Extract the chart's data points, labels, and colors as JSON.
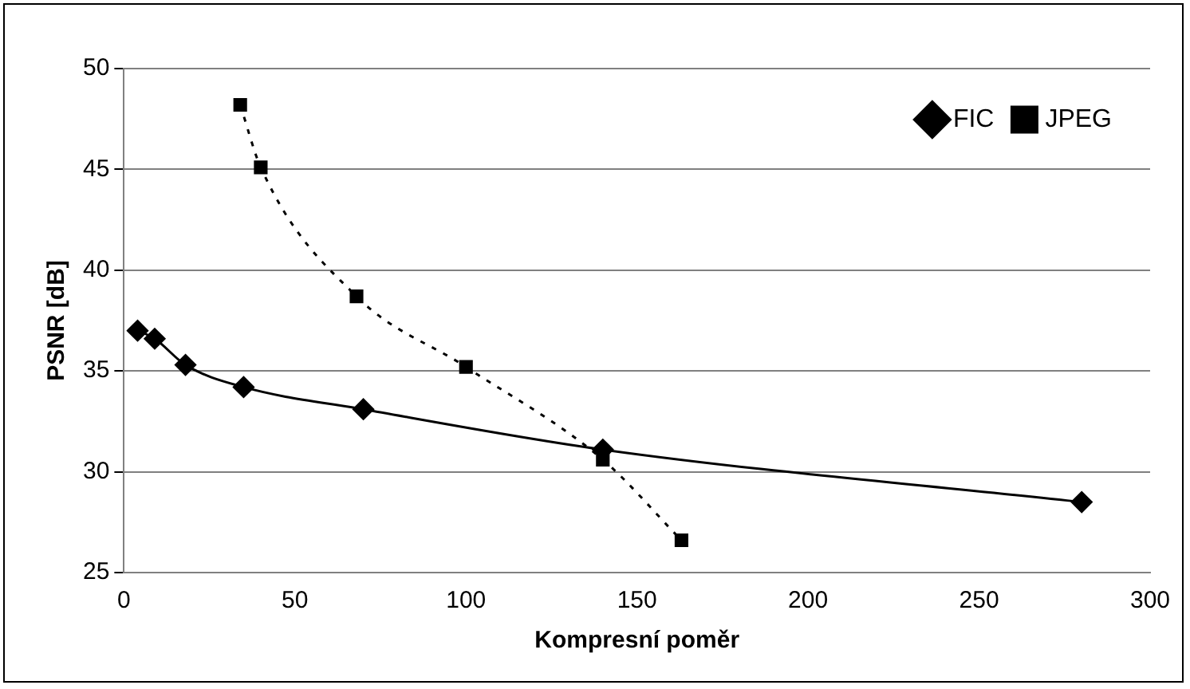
{
  "chart_data": {
    "type": "line",
    "xlabel": "Kompresní poměr",
    "ylabel": "PSNR [dB]",
    "xlim": [
      0,
      300
    ],
    "xticks": [
      0,
      50,
      100,
      150,
      200,
      250,
      300
    ],
    "ylim": [
      25,
      50
    ],
    "yticks": [
      25,
      30,
      35,
      40,
      45,
      50
    ],
    "grid": "y",
    "legend": "top right",
    "series": [
      {
        "name": "FIC",
        "color": "#000000",
        "marker": "diamond",
        "line_style": "solid",
        "x": [
          4,
          9,
          18,
          35,
          70,
          140,
          280
        ],
        "values": [
          37.0,
          36.6,
          35.3,
          34.2,
          33.1,
          31.1,
          28.5
        ]
      },
      {
        "name": "JPEG",
        "color": "#000000",
        "marker": "square",
        "line_style": "dotted",
        "x": [
          34,
          40,
          68,
          100,
          140,
          163
        ],
        "values": [
          48.2,
          45.1,
          38.7,
          35.2,
          30.6,
          26.6
        ]
      }
    ]
  }
}
